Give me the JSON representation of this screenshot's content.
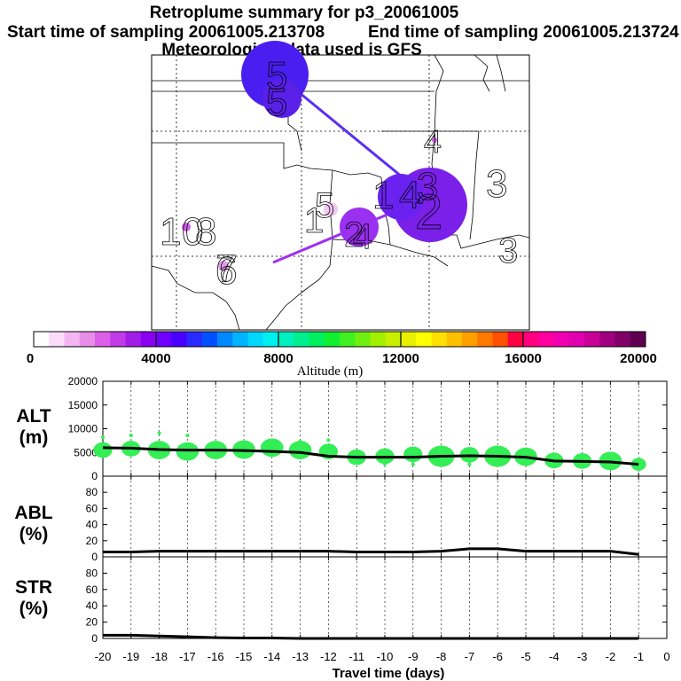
{
  "title": {
    "line1": "Retroplume summary for p3_20061005",
    "start": "Start time of sampling 20061005.213708",
    "end": "End time of sampling 20061005.213724",
    "line3": "Meteorological data used is GFS"
  },
  "colorbar": {
    "label": "Altitude (m)",
    "ticks": [
      "0",
      "4000",
      "8000",
      "12000",
      "16000",
      "20000"
    ],
    "colors": [
      "#ffffff",
      "#fbdcfb",
      "#f3b6f3",
      "#e88ee8",
      "#dc5fe8",
      "#c23be8",
      "#a21ee8",
      "#8a00f0",
      "#7000ff",
      "#4a00ff",
      "#2a2aff",
      "#0050ff",
      "#0088ff",
      "#00b4ff",
      "#00d8ff",
      "#00f0f0",
      "#00f0c0",
      "#00f090",
      "#00f060",
      "#10f030",
      "#40f020",
      "#70f010",
      "#a0f000",
      "#c8f000",
      "#e8f000",
      "#ffff00",
      "#ffe000",
      "#ffc000",
      "#ffa000",
      "#ff7800",
      "#ff5000",
      "#ff0040",
      "#ff0080",
      "#ff00a0",
      "#f000b0",
      "#e000b0",
      "#c80098",
      "#a00080",
      "#800068",
      "#600050"
    ]
  },
  "map": {
    "labels": [
      "5",
      "5",
      "4",
      "3",
      "3",
      "4",
      "3",
      "2",
      "1",
      "5",
      "1",
      "2",
      "4",
      "1",
      "0",
      "8",
      "7",
      "6"
    ]
  },
  "chart_data": [
    {
      "type": "scatter",
      "panel": "ALT",
      "ylabel_line1": "ALT",
      "ylabel_line2": "(m)",
      "ylim": [
        0,
        20000
      ],
      "yticks": [
        "20000",
        "15000",
        "10000",
        "5000",
        "0"
      ],
      "xlim": [
        -20,
        0
      ],
      "median_line": {
        "x": [
          -20,
          -19,
          -18,
          -17,
          -16,
          -15,
          -14,
          -13,
          -12,
          -11,
          -10,
          -9,
          -8,
          -7,
          -6,
          -5,
          -4,
          -3,
          -2,
          -1
        ],
        "y": [
          6000,
          5900,
          5600,
          5500,
          5500,
          5400,
          5200,
          5000,
          4200,
          4000,
          4000,
          4000,
          4200,
          4300,
          4200,
          4000,
          3200,
          3100,
          3000,
          2500
        ]
      },
      "bubbles": {
        "x": [
          -20,
          -19,
          -18,
          -17,
          -16,
          -15,
          -14,
          -13,
          -12,
          -11,
          -10,
          -9,
          -8,
          -7,
          -6,
          -5,
          -4,
          -3,
          -2,
          -1
        ],
        "y": [
          5500,
          5800,
          5500,
          5200,
          5500,
          5600,
          6000,
          5500,
          5200,
          4000,
          4200,
          4600,
          4200,
          4500,
          4200,
          4100,
          3300,
          3200,
          3200,
          2500
        ],
        "size": [
          3,
          3,
          4,
          4,
          4,
          4,
          4,
          4,
          3,
          3,
          3,
          3,
          5,
          3,
          5,
          4,
          3,
          3,
          4,
          2
        ]
      },
      "outliers": {
        "x": [
          -20,
          -19,
          -18,
          -17,
          -14,
          -13,
          -12,
          -10,
          -9,
          -7,
          -6
        ],
        "y": [
          8200,
          8600,
          9100,
          8600,
          7000,
          7300,
          7600,
          2600,
          2500,
          2500,
          3000
        ]
      }
    },
    {
      "type": "line",
      "panel": "ABL",
      "ylabel_line1": "ABL",
      "ylabel_line2": "(%)",
      "ylim": [
        0,
        100
      ],
      "yticks": [
        "80",
        "60",
        "40",
        "20",
        "0"
      ],
      "x": [
        -20,
        -19,
        -18,
        -17,
        -16,
        -15,
        -14,
        -13,
        -12,
        -11,
        -10,
        -9,
        -8,
        -7,
        -6,
        -5,
        -4,
        -3,
        -2,
        -1
      ],
      "y": [
        6,
        6,
        7,
        7,
        7,
        7,
        7,
        7,
        7,
        6,
        6,
        6,
        7,
        10,
        10,
        7,
        7,
        7,
        7,
        3
      ]
    },
    {
      "type": "line",
      "panel": "STR",
      "ylabel_line1": "STR",
      "ylabel_line2": "(%)",
      "ylim": [
        0,
        100
      ],
      "yticks": [
        "80",
        "60",
        "40",
        "20",
        "0"
      ],
      "x": [
        -20,
        -19,
        -18,
        -17,
        -16,
        -15,
        -14,
        -13,
        -12,
        -11,
        -10,
        -9,
        -8,
        -7,
        -6,
        -5,
        -4,
        -3,
        -2,
        -1
      ],
      "y": [
        4,
        4,
        3,
        2,
        1,
        0.5,
        0.5,
        0,
        0,
        0,
        0,
        0,
        0,
        0,
        0,
        0,
        0,
        0,
        0,
        0
      ]
    }
  ],
  "xaxis": {
    "label": "Travel time (days)",
    "ticks": [
      "-20",
      "-19",
      "-18",
      "-17",
      "-16",
      "-15",
      "-14",
      "-13",
      "-12",
      "-11",
      "-10",
      "-9",
      "-8",
      "-7",
      "-6",
      "-5",
      "-4",
      "-3",
      "-2",
      "-1",
      "0"
    ]
  }
}
